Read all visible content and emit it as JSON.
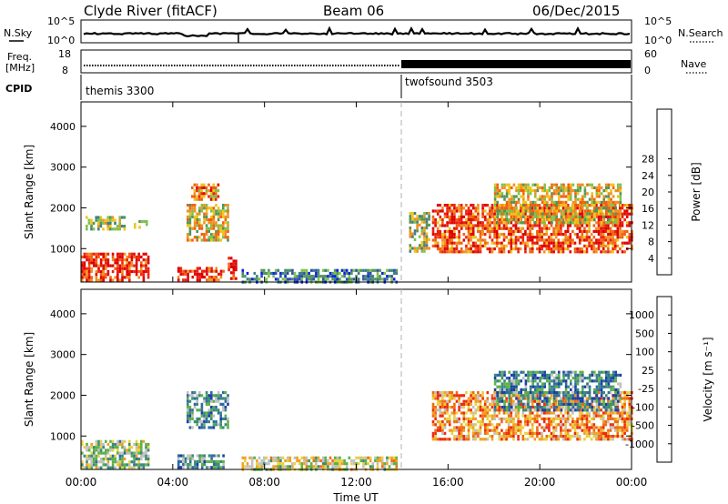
{
  "header": {
    "station": "Clyde River (fitACF)",
    "beam": "Beam 06",
    "date": "06/Dec/2015"
  },
  "params": {
    "nsky_label": "N.Sky",
    "nsky_ticks": [
      "10^5",
      "10^0"
    ],
    "nsearch_label": "N.Search",
    "nsearch_ticks": [
      "10^5",
      "10^0"
    ],
    "freq_label": "Freq.",
    "freq_unit": "[MHz]",
    "freq_ticks": [
      "18",
      "8"
    ],
    "nave_label": "Nave",
    "nave_ticks": [
      "60",
      "0"
    ],
    "cpid_label": "CPID",
    "cpid_segments": [
      {
        "name": "themis 3300",
        "start_hour": 0
      },
      {
        "name": "twofsound 3503",
        "start_hour": 14.0
      }
    ]
  },
  "colors": {
    "power_scale": [
      "#0a1ee6",
      "#2e4fb0",
      "#3f7f86",
      "#52945a",
      "#7fc24b",
      "#f0c418",
      "#f09020",
      "#f06010",
      "#ee2010",
      "#dd0000"
    ],
    "velocity_scale": [
      "#1a3fa8",
      "#2f6aa0",
      "#3a8a78",
      "#5cb048",
      "#c0c0c0",
      "#e8d040",
      "#f0a020",
      "#f06a10",
      "#ee2a10"
    ],
    "ground_gray": "#bdbdbd"
  },
  "chart_data": [
    {
      "type": "heatmap",
      "name": "power",
      "ylabel": "Slant Range [km]",
      "xlabel": "",
      "x_range_hours": [
        0,
        24
      ],
      "ylim": [
        180,
        4600
      ],
      "yticks": [
        "1000",
        "2000",
        "3000",
        "4000"
      ],
      "xticks": [
        "00:00",
        "04:00",
        "08:00",
        "12:00",
        "16:00",
        "20:00",
        "00:00"
      ],
      "colorbar": {
        "label": "Power [dB]",
        "ticks": [
          "4",
          "8",
          "12",
          "16",
          "20",
          "24",
          "28"
        ]
      },
      "echo_regions": [
        {
          "t0": 0.0,
          "t1": 2.9,
          "r0": 200,
          "r1": 900,
          "level": 0.85
        },
        {
          "t0": 0.2,
          "t1": 1.9,
          "r0": 1500,
          "r1": 1800,
          "level": 0.45
        },
        {
          "t0": 2.3,
          "t1": 2.9,
          "r0": 1500,
          "r1": 1700,
          "level": 0.35
        },
        {
          "t0": 4.2,
          "t1": 6.2,
          "r0": 250,
          "r1": 550,
          "level": 0.85
        },
        {
          "t0": 4.6,
          "t1": 6.4,
          "r0": 1200,
          "r1": 2100,
          "level": 0.55
        },
        {
          "t0": 4.8,
          "t1": 6.0,
          "r0": 2200,
          "r1": 2600,
          "level": 0.7
        },
        {
          "t0": 6.4,
          "t1": 6.8,
          "r0": 250,
          "r1": 800,
          "level": 0.9
        },
        {
          "t0": 7.0,
          "t1": 13.8,
          "r0": 200,
          "r1": 500,
          "level": 0.25
        },
        {
          "t0": 14.3,
          "t1": 15.2,
          "r0": 900,
          "r1": 1900,
          "level": 0.45
        },
        {
          "t0": 15.3,
          "t1": 24.0,
          "r0": 900,
          "r1": 2100,
          "level": 0.8
        },
        {
          "t0": 18.0,
          "t1": 23.5,
          "r0": 1600,
          "r1": 2600,
          "level": 0.55
        }
      ]
    },
    {
      "type": "heatmap",
      "name": "velocity",
      "ylabel": "Slant Range [km]",
      "xlabel": "Time UT",
      "x_range_hours": [
        0,
        24
      ],
      "ylim": [
        180,
        4600
      ],
      "yticks": [
        "1000",
        "2000",
        "3000",
        "4000"
      ],
      "xticks": [
        "00:00",
        "04:00",
        "08:00",
        "12:00",
        "16:00",
        "20:00",
        "00:00"
      ],
      "colorbar": {
        "label": "Velocity [m s⁻¹]",
        "ticks": [
          "1000",
          "500",
          "100",
          "25",
          "-25",
          "-100",
          "-500",
          "-1000"
        ]
      },
      "echo_regions": [
        {
          "t0": 0.0,
          "t1": 2.9,
          "r0": 200,
          "r1": 900,
          "level": 0.45
        },
        {
          "t0": 4.2,
          "t1": 6.2,
          "r0": 250,
          "r1": 550,
          "level": 0.3
        },
        {
          "t0": 4.6,
          "t1": 6.4,
          "r0": 1200,
          "r1": 2100,
          "level": 0.3
        },
        {
          "t0": 7.0,
          "t1": 13.8,
          "r0": 200,
          "r1": 500,
          "level": 0.55
        },
        {
          "t0": 15.3,
          "t1": 24.0,
          "r0": 900,
          "r1": 2100,
          "level": 0.75
        },
        {
          "t0": 18.0,
          "t1": 23.5,
          "r0": 1600,
          "r1": 2600,
          "level": 0.25
        }
      ]
    }
  ]
}
